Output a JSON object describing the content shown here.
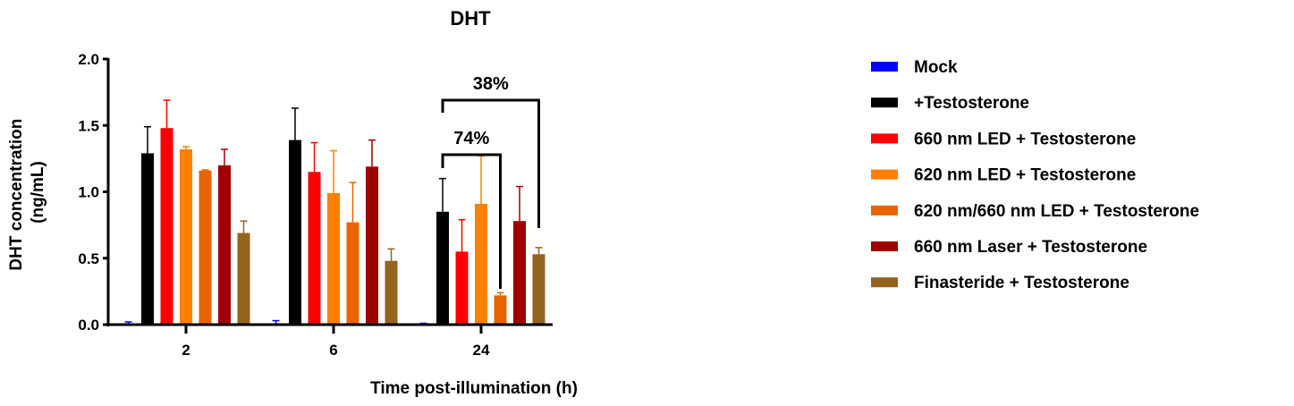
{
  "chart_data": {
    "type": "bar",
    "title": "DHT",
    "xlabel": "Time post-illumination (h)",
    "ylabel": [
      "DHT concentration",
      "(ng/mL)"
    ],
    "ylim": [
      0,
      2.0
    ],
    "yticks": [
      "0.0",
      "0.5",
      "1.0",
      "1.5",
      "2.0"
    ],
    "categories": [
      "2",
      "6",
      "24"
    ],
    "grid": false,
    "legend_position": "right",
    "series": [
      {
        "name": "Mock",
        "color": "#0000ff",
        "values": [
          0.01,
          0.01,
          0.01
        ],
        "error": [
          0.01,
          0.02,
          0.0
        ]
      },
      {
        "name": "+Testosterone",
        "color": "#000000",
        "values": [
          1.29,
          1.39,
          0.85
        ],
        "error": [
          0.2,
          0.24,
          0.25
        ]
      },
      {
        "name": "660 nm LED + Testosterone",
        "color": "#ff0000",
        "values": [
          1.48,
          1.15,
          0.55
        ],
        "error": [
          0.21,
          0.22,
          0.24
        ]
      },
      {
        "name": "620 nm LED + Testosterone",
        "color": "#ff8000",
        "values": [
          1.32,
          0.99,
          0.91
        ],
        "error": [
          0.02,
          0.32,
          0.36
        ]
      },
      {
        "name": "620 nm/660 nm LED + Testosterone",
        "color": "#e86400",
        "values": [
          1.16,
          0.77,
          0.22
        ],
        "error": [
          0.005,
          0.3,
          0.02
        ]
      },
      {
        "name": "660 nm Laser + Testosterone",
        "color": "#a00000",
        "values": [
          1.2,
          1.19,
          0.78
        ],
        "error": [
          0.12,
          0.2,
          0.26
        ]
      },
      {
        "name": "Finasteride + Testosterone",
        "color": "#936320",
        "values": [
          0.69,
          0.48,
          0.53
        ],
        "error": [
          0.09,
          0.09,
          0.05
        ]
      }
    ],
    "annotations": [
      {
        "text": "38%",
        "category": "24",
        "from_series": "+Testosterone",
        "to_series": "Finasteride + Testosterone"
      },
      {
        "text": "74%",
        "category": "24",
        "from_series": "+Testosterone",
        "to_series": "620 nm/660 nm LED + Testosterone"
      }
    ]
  }
}
